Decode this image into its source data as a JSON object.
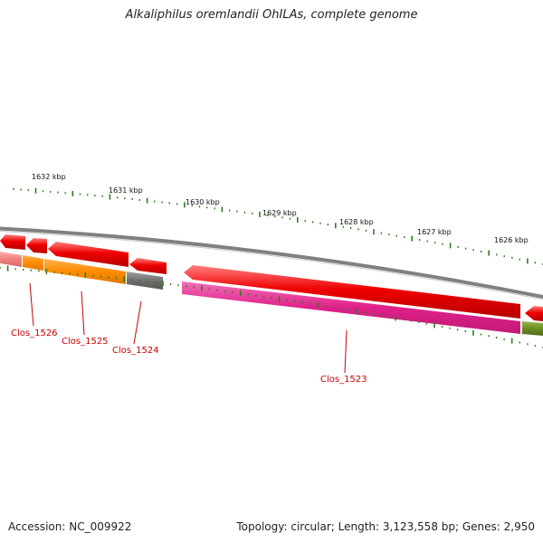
{
  "title": "Alkaliphilus oremlandii OhILAs, complete genome",
  "footer": {
    "accession": "Accession: NC_009922",
    "summary": "Topology: circular; Length: 3,123,558 bp; Genes: 2,950"
  },
  "ticks": [
    {
      "label": "1632 kbp"
    },
    {
      "label": "1631 kbp"
    },
    {
      "label": "1630 kbp"
    },
    {
      "label": "1629 kbp"
    },
    {
      "label": "1628 kbp"
    },
    {
      "label": "1627 kbp"
    },
    {
      "label": "1626 kbp"
    }
  ],
  "genes": [
    {
      "name": "Clos_1526"
    },
    {
      "name": "Clos_1525"
    },
    {
      "name": "Clos_1524"
    },
    {
      "name": "Clos_1523"
    }
  ],
  "colors": {
    "backbone": "#808080",
    "cds_reverse": "#ee0000",
    "tick": "#2e7d1e",
    "label": "#cc0000",
    "clos_1526": "#f08080",
    "clos_1525": "#ff8c00",
    "clos_1524": "#707070",
    "clos_1523": "#e0208a",
    "next_gene": "#6b8e23"
  }
}
